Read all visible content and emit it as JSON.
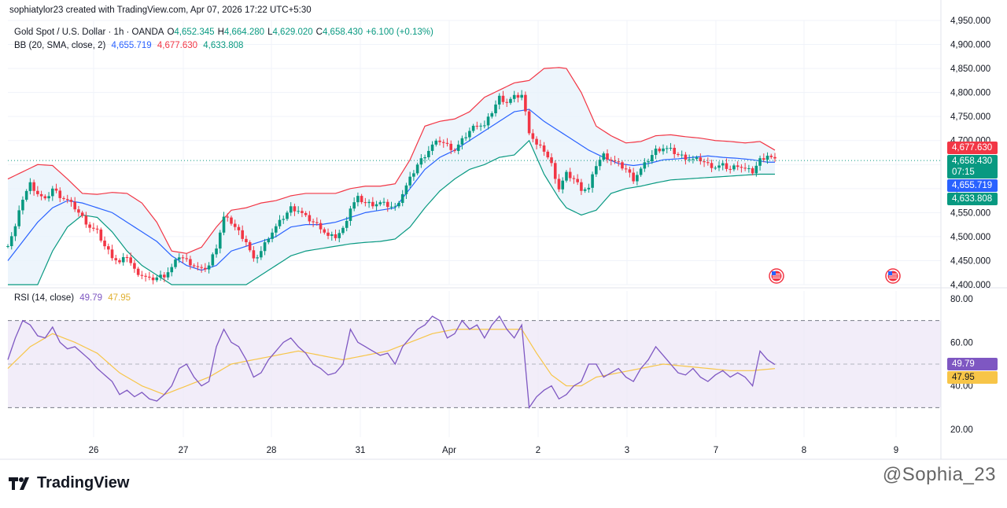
{
  "header": {
    "credit": "sophiatylor23 created with TradingView.com, Apr 07, 2026 17:22 UTC+5:30"
  },
  "legend": {
    "symbol": "Gold Spot / U.S. Dollar · 1h · OANDA",
    "o_label": "O",
    "o": "4,652.345",
    "h_label": "H",
    "h": "4,664.280",
    "l_label": "L",
    "l": "4,629.020",
    "c_label": "C",
    "c": "4,658.430",
    "change": "+6.100 (+0.13%)",
    "bb_label": "BB (20, SMA, close, 2)",
    "bb_basis": "4,655.719",
    "bb_upper": "4,677.630",
    "bb_lower": "4,633.808",
    "rsi_label": "RSI (14, close)",
    "rsi_value": "49.79",
    "rsi_ma": "47.95"
  },
  "price_tags": {
    "upper": "4,677.630",
    "last": "4,658.430",
    "countdown": "07:15",
    "basis": "4,655.719",
    "lower": "4,633.808",
    "rsi": "49.79",
    "rsi_ma": "47.95"
  },
  "colors": {
    "up": "#089981",
    "down": "#f23645",
    "bb_upper": "#f23645",
    "bb_basis": "#2962ff",
    "bb_lower": "#089981",
    "bb_fill": "#e8f2fb",
    "rsi_line": "#7e57c2",
    "rsi_ma": "#f7c548",
    "rsi_band": "#ede6f7"
  },
  "brand": {
    "name": "TradingView"
  },
  "watermark": "@Sophia_23",
  "chart_data": {
    "type": "candlestick",
    "price_axis": {
      "ticks": [
        "4,950.000",
        "4,900.000",
        "4,850.000",
        "4,800.000",
        "4,750.000",
        "4,700.000",
        "4,650.000",
        "4,600.000",
        "4,550.000",
        "4,500.000",
        "4,450.000",
        "4,400.000"
      ],
      "ylim": [
        4400,
        4950
      ]
    },
    "rsi_axis": {
      "ticks": [
        "80.00",
        "60.00",
        "40.00",
        "20.00"
      ],
      "ylim": [
        20,
        80
      ],
      "band": [
        30,
        70
      ],
      "mid": 50
    },
    "x_axis": {
      "ticks": [
        "26",
        "27",
        "28",
        "31",
        "Apr",
        "2",
        "3",
        "7",
        "8",
        "9"
      ]
    },
    "price_path": [
      [
        0,
        4485
      ],
      [
        2,
        4520
      ],
      [
        4,
        4580
      ],
      [
        6,
        4610
      ],
      [
        8,
        4590
      ],
      [
        10,
        4575
      ],
      [
        12,
        4600
      ],
      [
        14,
        4585
      ],
      [
        16,
        4575
      ],
      [
        18,
        4560
      ],
      [
        20,
        4540
      ],
      [
        22,
        4520
      ],
      [
        24,
        4510
      ],
      [
        26,
        4480
      ],
      [
        28,
        4460
      ],
      [
        30,
        4445
      ],
      [
        32,
        4460
      ],
      [
        34,
        4430
      ],
      [
        36,
        4420
      ],
      [
        38,
        4410
      ],
      [
        40,
        4415
      ],
      [
        42,
        4420
      ],
      [
        44,
        4435
      ],
      [
        46,
        4460
      ],
      [
        48,
        4450
      ],
      [
        50,
        4440
      ],
      [
        52,
        4430
      ],
      [
        54,
        4440
      ],
      [
        56,
        4480
      ],
      [
        58,
        4540
      ],
      [
        60,
        4530
      ],
      [
        62,
        4510
      ],
      [
        64,
        4490
      ],
      [
        66,
        4450
      ],
      [
        68,
        4470
      ],
      [
        70,
        4500
      ],
      [
        72,
        4520
      ],
      [
        74,
        4540
      ],
      [
        76,
        4560
      ],
      [
        78,
        4555
      ],
      [
        80,
        4540
      ],
      [
        82,
        4530
      ],
      [
        84,
        4520
      ],
      [
        86,
        4500
      ],
      [
        88,
        4500
      ],
      [
        90,
        4515
      ],
      [
        92,
        4560
      ],
      [
        94,
        4580
      ],
      [
        96,
        4570
      ],
      [
        98,
        4568
      ],
      [
        100,
        4570
      ],
      [
        102,
        4565
      ],
      [
        104,
        4560
      ],
      [
        106,
        4590
      ],
      [
        108,
        4620
      ],
      [
        110,
        4650
      ],
      [
        112,
        4670
      ],
      [
        114,
        4690
      ],
      [
        116,
        4700
      ],
      [
        118,
        4690
      ],
      [
        120,
        4680
      ],
      [
        122,
        4700
      ],
      [
        124,
        4720
      ],
      [
        126,
        4735
      ],
      [
        128,
        4730
      ],
      [
        130,
        4760
      ],
      [
        132,
        4790
      ],
      [
        134,
        4780
      ],
      [
        136,
        4790
      ],
      [
        138,
        4795
      ],
      [
        140,
        4720
      ],
      [
        142,
        4690
      ],
      [
        144,
        4680
      ],
      [
        146,
        4650
      ],
      [
        148,
        4600
      ],
      [
        150,
        4630
      ],
      [
        152,
        4620
      ],
      [
        154,
        4600
      ],
      [
        156,
        4600
      ],
      [
        158,
        4650
      ],
      [
        160,
        4670
      ],
      [
        162,
        4660
      ],
      [
        164,
        4650
      ],
      [
        166,
        4640
      ],
      [
        168,
        4620
      ],
      [
        170,
        4640
      ],
      [
        172,
        4660
      ],
      [
        174,
        4680
      ],
      [
        176,
        4685
      ],
      [
        178,
        4680
      ],
      [
        180,
        4670
      ],
      [
        182,
        4665
      ],
      [
        184,
        4660
      ],
      [
        186,
        4660
      ],
      [
        188,
        4650
      ],
      [
        190,
        4645
      ],
      [
        192,
        4648
      ],
      [
        194,
        4640
      ],
      [
        196,
        4650
      ],
      [
        198,
        4640
      ],
      [
        200,
        4635
      ],
      [
        202,
        4660
      ],
      [
        204,
        4670
      ],
      [
        206,
        4658
      ]
    ],
    "bb_upper_path": [
      [
        0,
        4620
      ],
      [
        4,
        4635
      ],
      [
        8,
        4650
      ],
      [
        12,
        4648
      ],
      [
        16,
        4620
      ],
      [
        20,
        4590
      ],
      [
        24,
        4588
      ],
      [
        28,
        4592
      ],
      [
        32,
        4590
      ],
      [
        36,
        4570
      ],
      [
        40,
        4530
      ],
      [
        44,
        4470
      ],
      [
        48,
        4465
      ],
      [
        52,
        4478
      ],
      [
        56,
        4520
      ],
      [
        60,
        4555
      ],
      [
        64,
        4560
      ],
      [
        68,
        4570
      ],
      [
        72,
        4575
      ],
      [
        76,
        4585
      ],
      [
        80,
        4590
      ],
      [
        84,
        4590
      ],
      [
        88,
        4590
      ],
      [
        92,
        4600
      ],
      [
        96,
        4605
      ],
      [
        100,
        4605
      ],
      [
        104,
        4610
      ],
      [
        108,
        4660
      ],
      [
        112,
        4730
      ],
      [
        116,
        4740
      ],
      [
        120,
        4745
      ],
      [
        124,
        4760
      ],
      [
        128,
        4790
      ],
      [
        132,
        4805
      ],
      [
        136,
        4820
      ],
      [
        140,
        4825
      ],
      [
        144,
        4850
      ],
      [
        148,
        4852
      ],
      [
        150,
        4850
      ],
      [
        154,
        4800
      ],
      [
        158,
        4730
      ],
      [
        162,
        4710
      ],
      [
        166,
        4695
      ],
      [
        170,
        4698
      ],
      [
        174,
        4710
      ],
      [
        178,
        4712
      ],
      [
        182,
        4708
      ],
      [
        186,
        4705
      ],
      [
        190,
        4700
      ],
      [
        194,
        4698
      ],
      [
        198,
        4695
      ],
      [
        202,
        4698
      ],
      [
        206,
        4680
      ]
    ],
    "bb_basis_path": [
      [
        0,
        4450
      ],
      [
        4,
        4490
      ],
      [
        8,
        4530
      ],
      [
        12,
        4560
      ],
      [
        16,
        4575
      ],
      [
        20,
        4570
      ],
      [
        24,
        4560
      ],
      [
        28,
        4550
      ],
      [
        32,
        4530
      ],
      [
        36,
        4510
      ],
      [
        40,
        4490
      ],
      [
        44,
        4460
      ],
      [
        48,
        4440
      ],
      [
        52,
        4430
      ],
      [
        56,
        4440
      ],
      [
        60,
        4470
      ],
      [
        64,
        4480
      ],
      [
        68,
        4490
      ],
      [
        72,
        4500
      ],
      [
        76,
        4520
      ],
      [
        80,
        4525
      ],
      [
        84,
        4525
      ],
      [
        88,
        4530
      ],
      [
        92,
        4540
      ],
      [
        96,
        4550
      ],
      [
        100,
        4555
      ],
      [
        104,
        4560
      ],
      [
        108,
        4600
      ],
      [
        112,
        4640
      ],
      [
        116,
        4665
      ],
      [
        120,
        4680
      ],
      [
        124,
        4700
      ],
      [
        128,
        4720
      ],
      [
        132,
        4740
      ],
      [
        136,
        4760
      ],
      [
        140,
        4765
      ],
      [
        144,
        4740
      ],
      [
        148,
        4720
      ],
      [
        152,
        4700
      ],
      [
        156,
        4680
      ],
      [
        160,
        4665
      ],
      [
        164,
        4652
      ],
      [
        168,
        4648
      ],
      [
        172,
        4652
      ],
      [
        176,
        4660
      ],
      [
        180,
        4662
      ],
      [
        184,
        4665
      ],
      [
        188,
        4668
      ],
      [
        192,
        4665
      ],
      [
        196,
        4663
      ],
      [
        200,
        4660
      ],
      [
        204,
        4655
      ],
      [
        206,
        4655
      ]
    ],
    "bb_lower_path": [
      [
        0,
        4270
      ],
      [
        4,
        4330
      ],
      [
        8,
        4400
      ],
      [
        12,
        4470
      ],
      [
        16,
        4520
      ],
      [
        20,
        4545
      ],
      [
        24,
        4540
      ],
      [
        28,
        4510
      ],
      [
        32,
        4470
      ],
      [
        36,
        4440
      ],
      [
        40,
        4420
      ],
      [
        44,
        4400
      ],
      [
        48,
        4395
      ],
      [
        52,
        4390
      ],
      [
        56,
        4385
      ],
      [
        60,
        4390
      ],
      [
        64,
        4400
      ],
      [
        68,
        4420
      ],
      [
        72,
        4440
      ],
      [
        76,
        4460
      ],
      [
        80,
        4470
      ],
      [
        84,
        4475
      ],
      [
        88,
        4480
      ],
      [
        92,
        4485
      ],
      [
        96,
        4488
      ],
      [
        100,
        4490
      ],
      [
        104,
        4495
      ],
      [
        108,
        4520
      ],
      [
        112,
        4560
      ],
      [
        116,
        4595
      ],
      [
        120,
        4620
      ],
      [
        124,
        4640
      ],
      [
        128,
        4650
      ],
      [
        132,
        4665
      ],
      [
        136,
        4670
      ],
      [
        140,
        4700
      ],
      [
        144,
        4630
      ],
      [
        148,
        4580
      ],
      [
        150,
        4560
      ],
      [
        154,
        4545
      ],
      [
        158,
        4555
      ],
      [
        162,
        4590
      ],
      [
        166,
        4600
      ],
      [
        170,
        4605
      ],
      [
        174,
        4612
      ],
      [
        178,
        4618
      ],
      [
        182,
        4620
      ],
      [
        186,
        4622
      ],
      [
        190,
        4624
      ],
      [
        194,
        4626
      ],
      [
        198,
        4628
      ],
      [
        202,
        4630
      ],
      [
        206,
        4630
      ]
    ],
    "rsi_path": [
      [
        0,
        52
      ],
      [
        2,
        62
      ],
      [
        4,
        70
      ],
      [
        6,
        68
      ],
      [
        8,
        63
      ],
      [
        10,
        62
      ],
      [
        12,
        67
      ],
      [
        14,
        60
      ],
      [
        16,
        57
      ],
      [
        18,
        58
      ],
      [
        20,
        55
      ],
      [
        22,
        52
      ],
      [
        24,
        48
      ],
      [
        26,
        45
      ],
      [
        28,
        42
      ],
      [
        30,
        36
      ],
      [
        32,
        38
      ],
      [
        34,
        35
      ],
      [
        36,
        37
      ],
      [
        38,
        34
      ],
      [
        40,
        33
      ],
      [
        42,
        36
      ],
      [
        44,
        40
      ],
      [
        46,
        48
      ],
      [
        48,
        50
      ],
      [
        50,
        44
      ],
      [
        52,
        40
      ],
      [
        54,
        42
      ],
      [
        56,
        58
      ],
      [
        58,
        66
      ],
      [
        60,
        60
      ],
      [
        62,
        58
      ],
      [
        64,
        52
      ],
      [
        66,
        44
      ],
      [
        68,
        46
      ],
      [
        70,
        52
      ],
      [
        72,
        56
      ],
      [
        74,
        60
      ],
      [
        76,
        62
      ],
      [
        78,
        58
      ],
      [
        80,
        55
      ],
      [
        82,
        50
      ],
      [
        84,
        48
      ],
      [
        86,
        45
      ],
      [
        88,
        46
      ],
      [
        90,
        50
      ],
      [
        92,
        66
      ],
      [
        94,
        60
      ],
      [
        96,
        58
      ],
      [
        98,
        56
      ],
      [
        100,
        54
      ],
      [
        102,
        55
      ],
      [
        104,
        50
      ],
      [
        106,
        58
      ],
      [
        108,
        62
      ],
      [
        110,
        66
      ],
      [
        112,
        68
      ],
      [
        114,
        72
      ],
      [
        116,
        70
      ],
      [
        118,
        62
      ],
      [
        120,
        64
      ],
      [
        122,
        70
      ],
      [
        124,
        66
      ],
      [
        126,
        68
      ],
      [
        128,
        62
      ],
      [
        130,
        68
      ],
      [
        132,
        72
      ],
      [
        134,
        66
      ],
      [
        136,
        62
      ],
      [
        138,
        68
      ],
      [
        140,
        30
      ],
      [
        142,
        35
      ],
      [
        144,
        38
      ],
      [
        146,
        40
      ],
      [
        148,
        34
      ],
      [
        150,
        36
      ],
      [
        152,
        40
      ],
      [
        154,
        42
      ],
      [
        156,
        50
      ],
      [
        158,
        50
      ],
      [
        160,
        44
      ],
      [
        162,
        46
      ],
      [
        164,
        48
      ],
      [
        166,
        44
      ],
      [
        168,
        42
      ],
      [
        170,
        48
      ],
      [
        172,
        52
      ],
      [
        174,
        58
      ],
      [
        176,
        54
      ],
      [
        178,
        50
      ],
      [
        180,
        46
      ],
      [
        182,
        45
      ],
      [
        184,
        48
      ],
      [
        186,
        44
      ],
      [
        188,
        42
      ],
      [
        190,
        45
      ],
      [
        192,
        47
      ],
      [
        194,
        44
      ],
      [
        196,
        46
      ],
      [
        198,
        44
      ],
      [
        200,
        40
      ],
      [
        202,
        56
      ],
      [
        204,
        52
      ],
      [
        206,
        49.79
      ]
    ],
    "rsi_ma_path": [
      [
        0,
        48
      ],
      [
        6,
        58
      ],
      [
        12,
        64
      ],
      [
        18,
        60
      ],
      [
        24,
        55
      ],
      [
        30,
        46
      ],
      [
        36,
        40
      ],
      [
        42,
        36
      ],
      [
        48,
        40
      ],
      [
        54,
        44
      ],
      [
        60,
        50
      ],
      [
        66,
        52
      ],
      [
        72,
        54
      ],
      [
        78,
        56
      ],
      [
        84,
        54
      ],
      [
        90,
        52
      ],
      [
        96,
        54
      ],
      [
        102,
        56
      ],
      [
        108,
        60
      ],
      [
        114,
        64
      ],
      [
        120,
        66
      ],
      [
        126,
        66
      ],
      [
        132,
        66
      ],
      [
        138,
        66
      ],
      [
        142,
        55
      ],
      [
        146,
        45
      ],
      [
        150,
        40
      ],
      [
        154,
        40
      ],
      [
        158,
        44
      ],
      [
        164,
        46
      ],
      [
        170,
        48
      ],
      [
        176,
        50
      ],
      [
        182,
        49
      ],
      [
        188,
        48
      ],
      [
        194,
        47
      ],
      [
        200,
        47
      ],
      [
        206,
        47.95
      ]
    ]
  }
}
